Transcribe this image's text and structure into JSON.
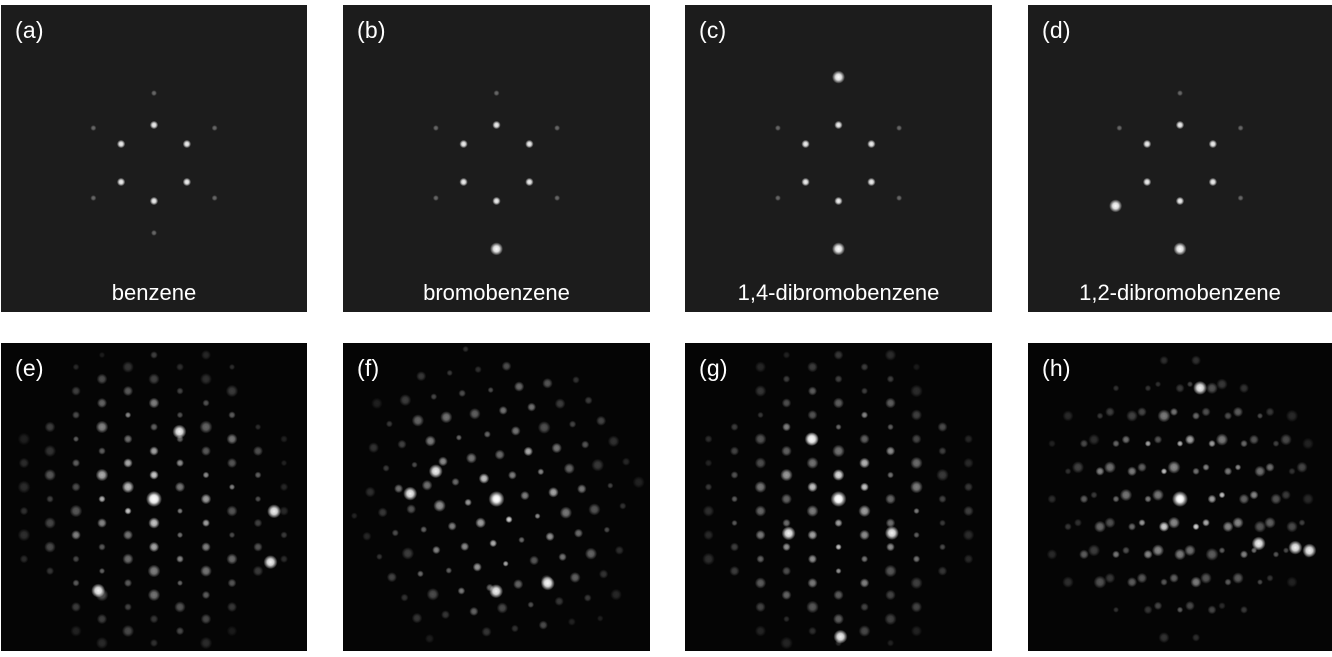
{
  "figure": {
    "panels": [
      {
        "label": "(a)",
        "caption": "benzene",
        "kind": "molecule",
        "heavy_atoms": []
      },
      {
        "label": "(b)",
        "caption": "bromobenzene",
        "kind": "molecule",
        "heavy_atoms": [
          [
            0,
            -2.0
          ]
        ]
      },
      {
        "label": "(c)",
        "caption": "1,4-dibromobenzene",
        "kind": "molecule",
        "heavy_atoms": [
          [
            0,
            2.0
          ],
          [
            0,
            -2.0
          ]
        ]
      },
      {
        "label": "(d)",
        "caption": "1,2-dibromobenzene",
        "kind": "molecule",
        "heavy_atoms": [
          [
            0,
            -2.0
          ],
          [
            -1.73,
            -1.0
          ]
        ]
      },
      {
        "label": "(e)",
        "caption": "",
        "kind": "pattern",
        "seed": 3,
        "style": "vertical"
      },
      {
        "label": "(f)",
        "caption": "",
        "kind": "pattern",
        "seed": 7,
        "style": "rotated"
      },
      {
        "label": "(g)",
        "caption": "",
        "kind": "pattern",
        "seed": 11,
        "style": "vertical"
      },
      {
        "label": "(h)",
        "caption": "",
        "kind": "pattern",
        "seed": 19,
        "style": "hex"
      }
    ],
    "colors": {
      "top_bg": "#1c1c1c",
      "bottom_bg": "#050505",
      "spot": "#ffffff"
    }
  }
}
